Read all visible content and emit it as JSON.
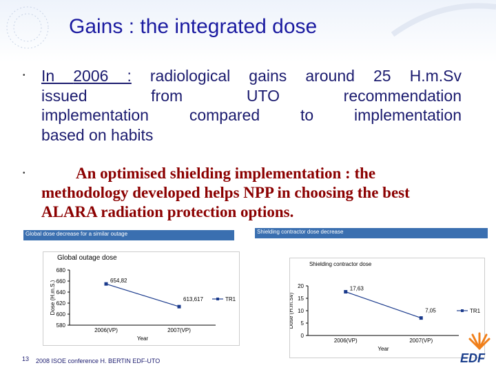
{
  "slide": {
    "title": "Gains :  the integrated dose",
    "bullet1": {
      "in": "In ",
      "year": "2006 :",
      "rest_line1": " radiological gains around 25 H.m.Sv",
      "line2": "issued from UTO recommendation",
      "line3": "implementation compared to implementation",
      "line4": "based on habits"
    },
    "bullet2": {
      "line1": "An optimised shielding implementation : the",
      "line2": "methodology developed  helps NPP in choosing the best",
      "line3": "ALARA radiation protection options."
    },
    "panel_label_left": "Global dose decrease for a similar outage",
    "panel_label_right": "Shielding contractor dose decrease",
    "footer_number": "13",
    "footer_text": "2008 ISOE conference H. BERTIN EDF-UTO",
    "logo_text": "EDF",
    "colors": {
      "title": "#1a1aa0",
      "bullet2": "#8b0000",
      "series": "#1a3a8c",
      "panel": "#3a6fb0"
    }
  },
  "chart_data": [
    {
      "type": "line",
      "title": "Global outage dose",
      "xlabel": "Year",
      "ylabel": "Dose (H.m.S.)",
      "categories": [
        "2006(VP)",
        "2007(VP)"
      ],
      "series": [
        {
          "name": "TR1",
          "values": [
            654.82,
            613.617
          ]
        }
      ],
      "data_labels": [
        "654,82",
        "613,617"
      ],
      "ylim": [
        580,
        660
      ],
      "yticks": [
        580,
        600,
        620,
        640,
        660,
        680
      ],
      "ytick_labels": [
        "580",
        "600",
        "620",
        "640",
        "660",
        "680"
      ],
      "legend": "right"
    },
    {
      "type": "line",
      "title": "Shielding contractor dose",
      "xlabel": "Year",
      "ylabel": "Dose (H.m.Sv)",
      "categories": [
        "2006(VP)",
        "2007(VP)"
      ],
      "series": [
        {
          "name": "TR1",
          "values": [
            17.63,
            7.05
          ]
        }
      ],
      "data_labels": [
        "17,63",
        "7,05"
      ],
      "ylim": [
        0,
        20
      ],
      "yticks": [
        0,
        5,
        10,
        15,
        20
      ],
      "ytick_labels": [
        "0",
        "5",
        "10",
        "15",
        "20"
      ],
      "legend": "right"
    }
  ]
}
